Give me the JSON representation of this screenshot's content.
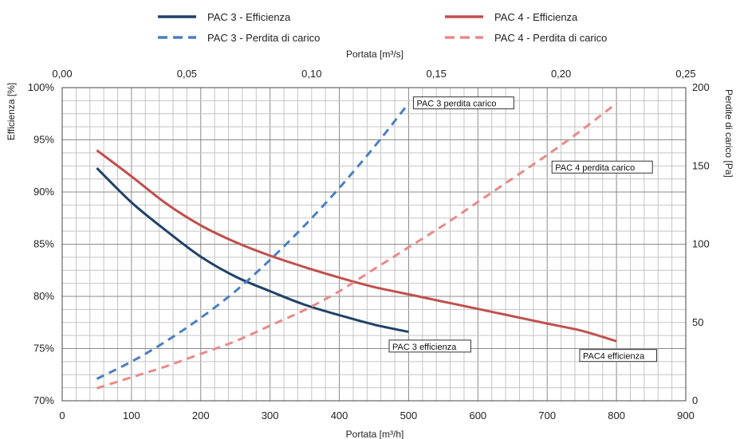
{
  "chart_data": {
    "type": "line",
    "legend": {
      "placement": "top",
      "entries": [
        {
          "label": "PAC 3 - Efficienza",
          "color": "#1f4266",
          "dash": "solid"
        },
        {
          "label": "PAC 3 - Perdita di carico",
          "color": "#4a7fc1",
          "dash": "dashed"
        },
        {
          "label": "PAC 4 - Efficienza",
          "color": "#c0504d",
          "dash": "solid"
        },
        {
          "label": "PAC 4 - Perdita di carico",
          "color": "#e88a88",
          "dash": "dashed"
        }
      ]
    },
    "x_bottom": {
      "label": "Portata [m³/h]",
      "range": [
        0,
        900
      ],
      "ticks": [
        0,
        100,
        200,
        300,
        400,
        500,
        600,
        700,
        800,
        900
      ],
      "tick_labels": [
        "0",
        "100",
        "200",
        "300",
        "400",
        "500",
        "600",
        "700",
        "800",
        "900"
      ]
    },
    "x_top": {
      "label": "Portata [m³/s]",
      "range": [
        0,
        0.25
      ],
      "ticks": [
        0,
        0.05,
        0.1,
        0.15,
        0.2,
        0.25
      ],
      "tick_labels": [
        "0,00",
        "0,05",
        "0,10",
        "0,15",
        "0,20",
        "0,25"
      ]
    },
    "y_left": {
      "label": "Efficienza [%]",
      "range": [
        70,
        100
      ],
      "ticks": [
        70,
        75,
        80,
        85,
        90,
        95,
        100
      ],
      "tick_labels": [
        "70%",
        "75%",
        "80%",
        "85%",
        "90%",
        "95%",
        "100%"
      ]
    },
    "y_right": {
      "label": "Perdite di carico [Pa]",
      "range": [
        0,
        200
      ],
      "ticks": [
        0,
        50,
        100,
        150,
        200
      ],
      "tick_labels": [
        "0",
        "50",
        "100",
        "150",
        "200"
      ]
    },
    "grid": true,
    "series": [
      {
        "axis": "left",
        "color": "#1f4266",
        "dash": "solid",
        "x": [
          50,
          100,
          150,
          200,
          250,
          300,
          350,
          400,
          450,
          500
        ],
        "y": [
          92.3,
          89.0,
          86.3,
          83.8,
          81.9,
          80.5,
          79.2,
          78.2,
          77.3,
          76.6
        ]
      },
      {
        "axis": "right",
        "color": "#4a7fc1",
        "dash": "dashed",
        "x": [
          50,
          100,
          150,
          200,
          250,
          300,
          350,
          400,
          450,
          500
        ],
        "y": [
          14,
          25,
          38,
          53,
          70,
          90,
          112,
          136,
          162,
          190
        ]
      },
      {
        "axis": "left",
        "color": "#c0504d",
        "dash": "solid",
        "x": [
          50,
          100,
          150,
          200,
          250,
          300,
          350,
          400,
          450,
          500,
          550,
          600,
          650,
          700,
          750,
          800
        ],
        "y": [
          94.0,
          91.5,
          88.9,
          86.8,
          85.2,
          83.9,
          82.8,
          81.8,
          80.9,
          80.2,
          79.5,
          78.8,
          78.1,
          77.4,
          76.7,
          75.7
        ]
      },
      {
        "axis": "right",
        "color": "#e88a88",
        "dash": "dashed",
        "x": [
          50,
          100,
          150,
          200,
          250,
          300,
          350,
          400,
          450,
          500,
          550,
          600,
          650,
          700,
          750,
          800
        ],
        "y": [
          8,
          15,
          22,
          30,
          38,
          48,
          58,
          70,
          84,
          98,
          112,
          127,
          142,
          157,
          173,
          190
        ]
      }
    ],
    "annotations": [
      {
        "text": "PAC 3 perdita carico",
        "x": 500,
        "y": 190,
        "axis": "right"
      },
      {
        "text": "PAC 4 perdita carico",
        "x": 700,
        "y": 149,
        "axis": "right"
      },
      {
        "text": "PAC 3 efficienza",
        "x": 465,
        "y": 75.2,
        "axis": "left"
      },
      {
        "text": "PAC4 efficienza",
        "x": 740,
        "y": 74.3,
        "axis": "left"
      }
    ]
  }
}
